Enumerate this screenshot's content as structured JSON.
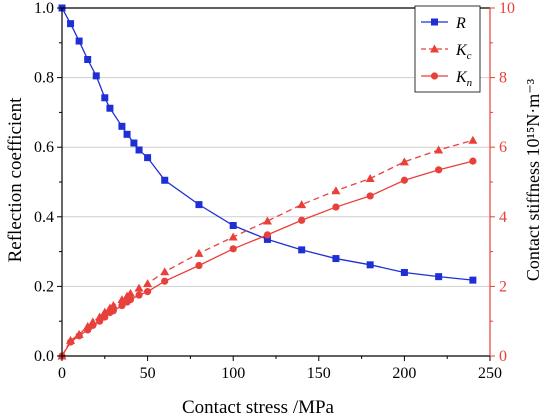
{
  "chart_data": {
    "type": "line",
    "xlabel": "Contact stress /MPa",
    "ylabel_left": "Reflection coefficient",
    "ylabel_right": "Contact stiffness 10¹⁵N·m⁻³",
    "xlim": [
      0,
      250
    ],
    "ylim_left": [
      0,
      1.0
    ],
    "ylim_right": [
      0,
      10
    ],
    "x_ticks": [
      "0",
      "50",
      "100",
      "150",
      "200",
      "250"
    ],
    "y_ticks_left": [
      "0.0",
      "0.2",
      "0.4",
      "0.6",
      "0.8",
      "1.0"
    ],
    "y_ticks_right": [
      "0",
      "2",
      "4",
      "6",
      "8",
      "10"
    ],
    "grid": "horizontal",
    "legend_position": "top-right",
    "series": [
      {
        "name": "R",
        "axis": "left",
        "color": "#1f2fd6",
        "marker": "square",
        "line": "solid",
        "x": [
          0,
          5,
          10,
          15,
          20,
          25,
          28,
          35,
          38,
          42,
          45,
          50,
          60,
          80,
          100,
          120,
          140,
          160,
          180,
          200,
          220,
          240
        ],
        "y": [
          1.0,
          0.955,
          0.905,
          0.852,
          0.805,
          0.742,
          0.712,
          0.66,
          0.637,
          0.612,
          0.592,
          0.57,
          0.505,
          0.435,
          0.375,
          0.335,
          0.305,
          0.28,
          0.262,
          0.24,
          0.228,
          0.218
        ]
      },
      {
        "name": "Kc",
        "axis": "right",
        "color": "#e8403a",
        "marker": "triangle",
        "line": "dashed",
        "x": [
          0,
          5,
          10,
          15,
          18,
          22,
          25,
          28,
          30,
          35,
          38,
          40,
          45,
          50,
          60,
          80,
          100,
          120,
          140,
          160,
          180,
          200,
          220,
          240
        ],
        "y": [
          0,
          0.45,
          0.62,
          0.85,
          0.98,
          1.12,
          1.26,
          1.38,
          1.45,
          1.62,
          1.72,
          1.8,
          1.95,
          2.08,
          2.42,
          2.95,
          3.42,
          3.88,
          4.35,
          4.75,
          5.1,
          5.58,
          5.92,
          6.2
        ]
      },
      {
        "name": "Kn",
        "axis": "right",
        "color": "#e8403a",
        "marker": "circle",
        "line": "solid",
        "x": [
          0,
          5,
          10,
          15,
          18,
          22,
          25,
          28,
          30,
          35,
          38,
          40,
          45,
          50,
          60,
          80,
          100,
          120,
          140,
          160,
          180,
          200,
          220,
          240
        ],
        "y": [
          0,
          0.4,
          0.58,
          0.75,
          0.88,
          1.0,
          1.12,
          1.25,
          1.3,
          1.45,
          1.55,
          1.62,
          1.75,
          1.85,
          2.15,
          2.6,
          3.08,
          3.48,
          3.9,
          4.28,
          4.6,
          5.05,
          5.35,
          5.6
        ]
      }
    ],
    "legend": [
      {
        "label": "R",
        "sub": ""
      },
      {
        "label": "K",
        "sub": "c"
      },
      {
        "label": "K",
        "sub": "n"
      }
    ]
  }
}
